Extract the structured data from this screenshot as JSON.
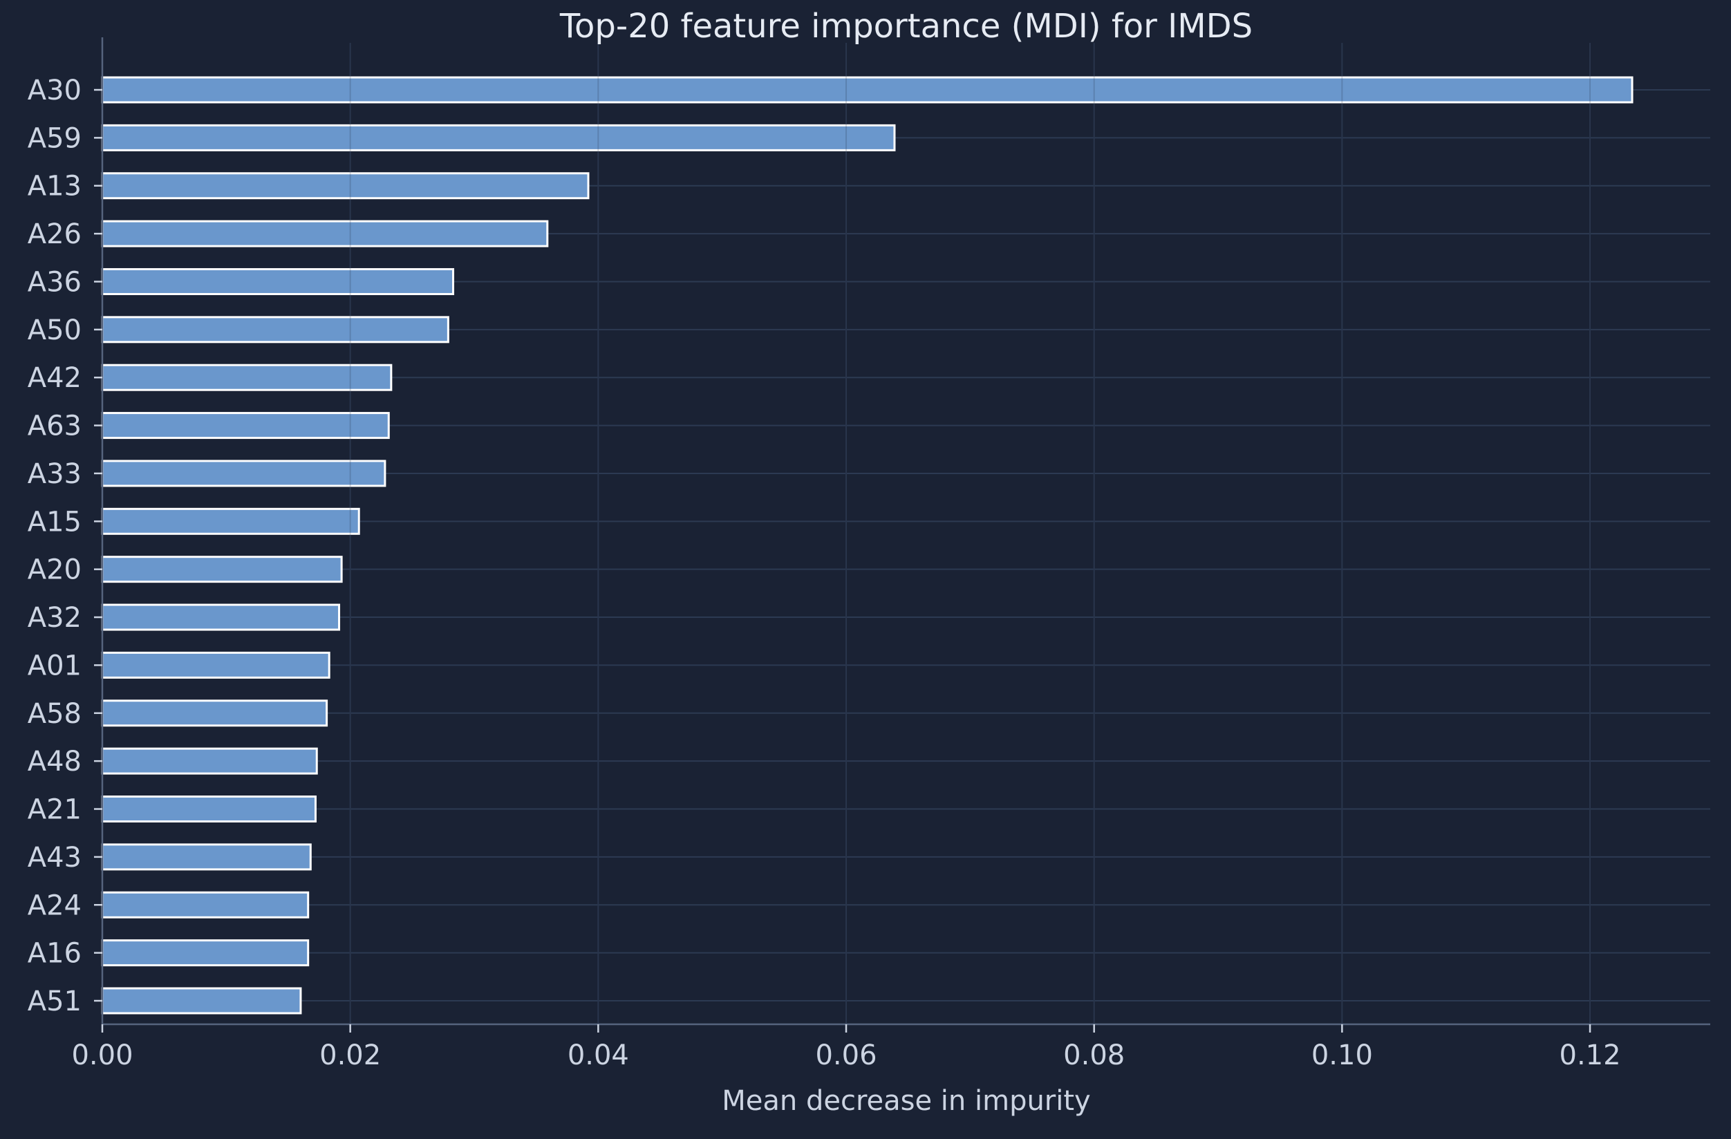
{
  "chart_data": {
    "type": "bar",
    "orientation": "horizontal",
    "title": "Top-20 feature importance (MDI) for IMDS",
    "xlabel": "Mean decrease in impurity",
    "ylabel": "",
    "xlim": [
      0,
      0.1297
    ],
    "xticks": [
      "0.00",
      "0.02",
      "0.04",
      "0.06",
      "0.08",
      "0.10",
      "0.12"
    ],
    "grid": true,
    "categories": [
      "A30",
      "A59",
      "A13",
      "A26",
      "A36",
      "A50",
      "A42",
      "A63",
      "A33",
      "A15",
      "A20",
      "A32",
      "A01",
      "A58",
      "A48",
      "A21",
      "A43",
      "A24",
      "A16",
      "A51"
    ],
    "values": [
      0.1234,
      0.0639,
      0.0392,
      0.0359,
      0.0283,
      0.0279,
      0.0233,
      0.0231,
      0.0228,
      0.0207,
      0.0193,
      0.0191,
      0.0183,
      0.0181,
      0.0173,
      0.0172,
      0.0168,
      0.0166,
      0.0166,
      0.016
    ]
  },
  "colors": {
    "background": "#1a2234",
    "bar_fill": "#6a97cc",
    "bar_edge": "#ffffff",
    "grid": "#2c3a52",
    "axis": "#56647e",
    "tick_text": "#ccd4e2",
    "title_text": "#e6ebf3"
  }
}
